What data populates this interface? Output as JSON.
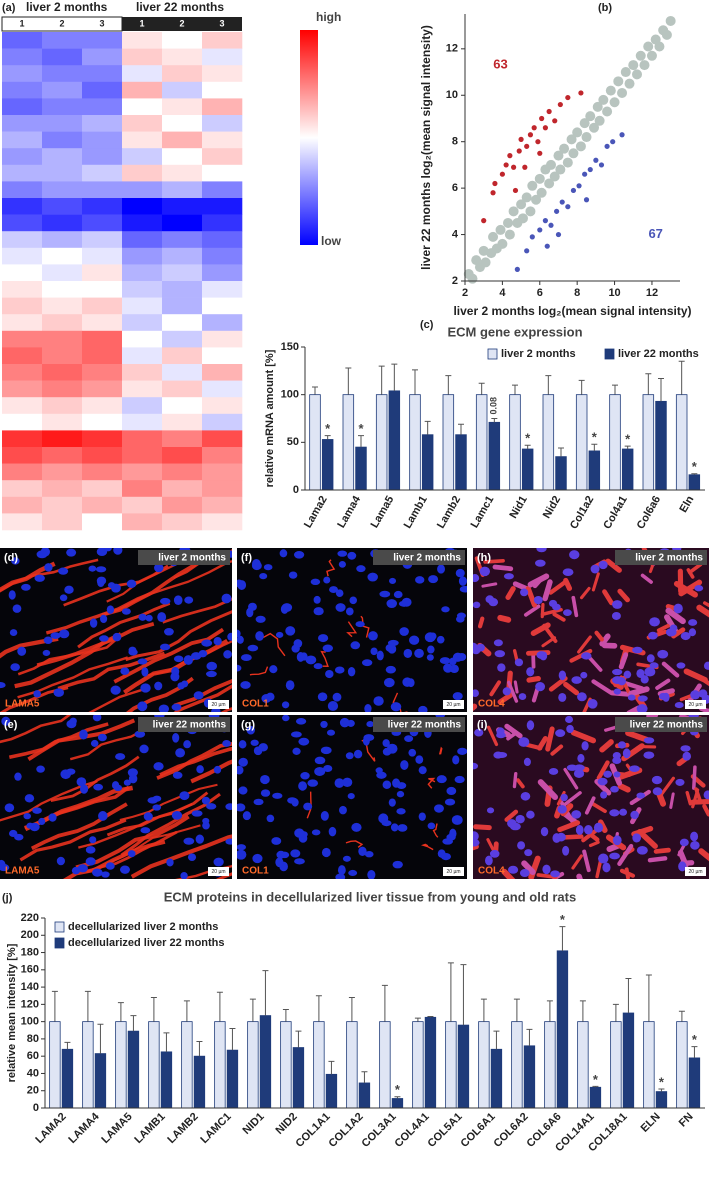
{
  "chart_data": [
    {
      "type": "heatmap",
      "panel": "(a)",
      "groups": [
        "liver 2 months",
        "liver 22 months"
      ],
      "columns": [
        "1",
        "2",
        "3",
        "1",
        "2",
        "3"
      ],
      "colorbar_labels": [
        "high",
        "low"
      ],
      "zlim": [
        -1,
        1
      ],
      "values": [
        [
          -0.6,
          -0.5,
          -0.5,
          0.1,
          0.0,
          0.2
        ],
        [
          -0.5,
          -0.6,
          -0.4,
          0.2,
          0.1,
          -0.1
        ],
        [
          -0.4,
          -0.5,
          -0.5,
          -0.1,
          0.2,
          0.1
        ],
        [
          -0.5,
          -0.4,
          -0.6,
          0.3,
          -0.2,
          0.0
        ],
        [
          -0.6,
          -0.5,
          -0.5,
          0.0,
          0.1,
          0.3
        ],
        [
          -0.4,
          -0.4,
          -0.3,
          0.2,
          0.0,
          -0.2
        ],
        [
          -0.3,
          -0.5,
          -0.4,
          0.1,
          0.3,
          0.1
        ],
        [
          -0.4,
          -0.3,
          -0.4,
          -0.2,
          0.0,
          0.2
        ],
        [
          -0.3,
          -0.3,
          -0.2,
          0.2,
          0.1,
          0.0
        ],
        [
          -0.5,
          -0.4,
          -0.4,
          -0.4,
          -0.3,
          -0.5
        ],
        [
          -0.8,
          -0.7,
          -0.8,
          -1.0,
          -0.9,
          -0.9
        ],
        [
          -0.7,
          -0.8,
          -0.7,
          -0.9,
          -1.0,
          -0.8
        ],
        [
          -0.2,
          -0.3,
          -0.2,
          -0.6,
          -0.5,
          -0.6
        ],
        [
          -0.1,
          0.0,
          -0.1,
          -0.4,
          -0.3,
          -0.5
        ],
        [
          0.0,
          -0.1,
          0.1,
          -0.3,
          -0.2,
          -0.4
        ],
        [
          0.1,
          0.0,
          0.0,
          -0.2,
          -0.3,
          -0.1
        ],
        [
          0.2,
          0.1,
          0.2,
          -0.1,
          -0.3,
          0.0
        ],
        [
          0.1,
          0.2,
          0.1,
          -0.2,
          0.0,
          -0.3
        ],
        [
          0.5,
          0.5,
          0.6,
          0.0,
          -0.2,
          0.1
        ],
        [
          0.6,
          0.5,
          0.6,
          -0.1,
          0.2,
          0.0
        ],
        [
          0.5,
          0.6,
          0.5,
          0.2,
          -0.1,
          0.3
        ],
        [
          0.4,
          0.5,
          0.4,
          0.1,
          0.2,
          -0.1
        ],
        [
          0.1,
          0.2,
          0.1,
          -0.2,
          0.0,
          0.1
        ],
        [
          0.0,
          0.1,
          0.0,
          -0.1,
          0.1,
          -0.2
        ],
        [
          0.8,
          0.9,
          0.8,
          0.6,
          0.5,
          0.7
        ],
        [
          0.7,
          0.6,
          0.7,
          0.6,
          0.7,
          0.5
        ],
        [
          0.5,
          0.4,
          0.5,
          0.4,
          0.5,
          0.4
        ],
        [
          0.2,
          0.3,
          0.2,
          0.5,
          0.3,
          0.4
        ],
        [
          0.3,
          0.2,
          0.3,
          0.2,
          0.4,
          0.3
        ],
        [
          0.1,
          0.2,
          0.0,
          0.3,
          0.2,
          0.1
        ]
      ]
    },
    {
      "type": "scatter",
      "panel": "(b)",
      "xlabel": "liver 2 months log₂(mean signal intensity)",
      "ylabel": "liver 22 months log₂(mean signal intensity)",
      "xlim": [
        2,
        13.5
      ],
      "ylim": [
        2,
        13.5
      ],
      "xticks": [
        2,
        4,
        6,
        8,
        10,
        12
      ],
      "yticks": [
        2,
        4,
        6,
        8,
        10,
        12
      ],
      "annotations": [
        {
          "text": "63",
          "x": 3.9,
          "y": 11.3,
          "color": "#c0262c"
        },
        {
          "text": "67",
          "x": 12.2,
          "y": 4.0,
          "color": "#4a56b8"
        }
      ],
      "series": [
        {
          "color": "#b8c4bf",
          "x": [
            2.2,
            2.4,
            2.6,
            2.8,
            3.0,
            3.1,
            3.4,
            3.5,
            3.7,
            3.9,
            4.0,
            4.3,
            4.4,
            4.6,
            4.8,
            5.0,
            5.1,
            5.3,
            5.5,
            5.6,
            5.8,
            6.0,
            6.1,
            6.3,
            6.5,
            6.6,
            6.8,
            7.0,
            7.1,
            7.3,
            7.5,
            7.7,
            7.8,
            8.0,
            8.2,
            8.4,
            8.5,
            8.7,
            8.9,
            9.1,
            9.2,
            9.4,
            9.6,
            9.8,
            10.0,
            10.2,
            10.4,
            10.6,
            10.8,
            11.0,
            11.2,
            11.4,
            11.6,
            11.8,
            12.0,
            12.2,
            12.4,
            12.6,
            12.8,
            13.0
          ],
          "y": [
            2.3,
            2.1,
            2.9,
            2.6,
            3.3,
            2.8,
            3.2,
            3.9,
            3.4,
            4.2,
            3.6,
            4.5,
            4.0,
            5.0,
            4.5,
            5.3,
            4.7,
            5.6,
            5.0,
            6.1,
            5.5,
            6.4,
            5.8,
            6.8,
            6.2,
            7.0,
            6.5,
            7.4,
            6.8,
            7.7,
            7.1,
            8.1,
            7.5,
            8.4,
            7.8,
            8.8,
            8.2,
            9.1,
            8.6,
            9.5,
            8.9,
            9.8,
            9.3,
            10.2,
            9.7,
            10.6,
            10.1,
            11.0,
            10.5,
            11.3,
            10.9,
            11.7,
            11.3,
            12.1,
            11.7,
            12.4,
            12.1,
            12.8,
            12.6,
            13.2
          ]
        },
        {
          "color": "#c0262c",
          "x": [
            3.0,
            3.5,
            3.6,
            4.0,
            4.2,
            4.4,
            4.6,
            4.9,
            5.0,
            5.3,
            5.5,
            5.7,
            5.9,
            6.1,
            6.3,
            6.5,
            6.8,
            7.1,
            7.5,
            8.2,
            4.7,
            5.2,
            6.0
          ],
          "y": [
            4.6,
            5.8,
            6.2,
            6.6,
            7.0,
            7.4,
            6.9,
            7.6,
            8.1,
            7.8,
            8.3,
            8.6,
            8.0,
            9.0,
            8.6,
            9.3,
            8.9,
            9.6,
            9.9,
            10.1,
            5.9,
            6.9,
            7.5
          ]
        },
        {
          "color": "#4a56b8",
          "x": [
            4.8,
            5.3,
            5.6,
            6.0,
            6.3,
            6.6,
            6.9,
            7.2,
            7.5,
            7.8,
            8.1,
            8.4,
            8.7,
            9.0,
            9.3,
            9.6,
            9.9,
            10.4,
            7.0,
            8.5,
            6.4
          ],
          "y": [
            2.5,
            3.3,
            3.9,
            4.2,
            4.6,
            4.4,
            5.0,
            5.4,
            5.2,
            5.9,
            6.1,
            6.6,
            6.8,
            7.2,
            7.0,
            7.8,
            8.0,
            8.3,
            4.0,
            5.5,
            3.5
          ]
        }
      ]
    },
    {
      "type": "bar",
      "panel": "(c)",
      "title": "ECM gene expression",
      "ylabel": "relative mRNA amount [%]",
      "legend": "upper right",
      "ylim": [
        0,
        150
      ],
      "yticks": [
        0,
        50,
        100,
        150
      ],
      "categories": [
        "Lama2",
        "Lama4",
        "Lama5",
        "Lamb1",
        "Lamb2",
        "Lamc1",
        "Nid1",
        "Nid2",
        "Col1a2",
        "Col4a1",
        "Col6a6",
        "Eln"
      ],
      "series": [
        {
          "name": "liver 2 months",
          "color": "#dfe5f4",
          "values": [
            100,
            100,
            100,
            100,
            100,
            100,
            100,
            100,
            100,
            100,
            100,
            100
          ],
          "errors": [
            8,
            28,
            30,
            26,
            20,
            12,
            10,
            20,
            15,
            10,
            22,
            35
          ]
        },
        {
          "name": "liver 22 months",
          "color": "#1f3b7a",
          "values": [
            53,
            45,
            104,
            58,
            58,
            71,
            43,
            35,
            41,
            43,
            93,
            16
          ],
          "errors": [
            4,
            12,
            28,
            14,
            11,
            4,
            4,
            9,
            7,
            3,
            24,
            1
          ],
          "significance": [
            "*",
            "*",
            null,
            null,
            null,
            "0.08",
            "*",
            null,
            "*",
            "*",
            null,
            "*"
          ]
        }
      ]
    },
    {
      "type": "bar",
      "panel": "(j)",
      "title": "ECM proteins in decellularized liver tissue from young and old rats",
      "ylabel": "relative mean intensity [%]",
      "legend": "upper left",
      "ylim": [
        0,
        220
      ],
      "yticks": [
        0,
        20,
        40,
        60,
        80,
        100,
        120,
        140,
        160,
        180,
        200,
        220
      ],
      "categories": [
        "LAMA2",
        "LAMA4",
        "LAMA5",
        "LAMB1",
        "LAMB2",
        "LAMC1",
        "NID1",
        "NID2",
        "COL1A1",
        "COL1A2",
        "COL3A1",
        "COL4A1",
        "COL5A1",
        "COL6A1",
        "COL6A2",
        "COL6A6",
        "COL14A1",
        "COL18A1",
        "ELN",
        "FN"
      ],
      "series": [
        {
          "name": "decellularized liver 2 months",
          "color": "#dfe5f4",
          "values": [
            100,
            100,
            100,
            100,
            100,
            100,
            100,
            100,
            100,
            100,
            100,
            100,
            100,
            100,
            100,
            100,
            100,
            100,
            100,
            100
          ],
          "errors": [
            35,
            35,
            22,
            28,
            24,
            34,
            26,
            14,
            30,
            28,
            42,
            4,
            68,
            26,
            26,
            24,
            24,
            20,
            54,
            12
          ]
        },
        {
          "name": "decellularized liver 22 months",
          "color": "#1f3b7a",
          "values": [
            68,
            63,
            89,
            65,
            60,
            67,
            107,
            70,
            39,
            29,
            11,
            105,
            96,
            68,
            72,
            182,
            24,
            110,
            19,
            58
          ],
          "errors": [
            8,
            34,
            18,
            22,
            17,
            25,
            52,
            19,
            15,
            13,
            2,
            1,
            70,
            21,
            19,
            28,
            1,
            40,
            3,
            13
          ],
          "significance": [
            null,
            null,
            null,
            null,
            null,
            null,
            null,
            null,
            null,
            null,
            "*",
            null,
            null,
            null,
            null,
            "*",
            "*",
            null,
            "*",
            "*"
          ]
        }
      ]
    }
  ],
  "micrographs": [
    {
      "panel": "(d)",
      "condition": "liver 2 months",
      "stain": "LAMA5",
      "scale": "20 µm"
    },
    {
      "panel": "(f)",
      "condition": "liver 2 months",
      "stain": "COL1",
      "scale": "20 µm"
    },
    {
      "panel": "(h)",
      "condition": "liver 2 months",
      "stain": "COL4",
      "scale": "20 µm"
    },
    {
      "panel": "(e)",
      "condition": "liver 22 months",
      "stain": "LAMA5",
      "scale": "20 µm"
    },
    {
      "panel": "(g)",
      "condition": "liver 22 months",
      "stain": "COL1",
      "scale": "20 µm"
    },
    {
      "panel": "(i)",
      "condition": "liver 22 months",
      "stain": "COL4",
      "scale": "20 µm"
    }
  ]
}
